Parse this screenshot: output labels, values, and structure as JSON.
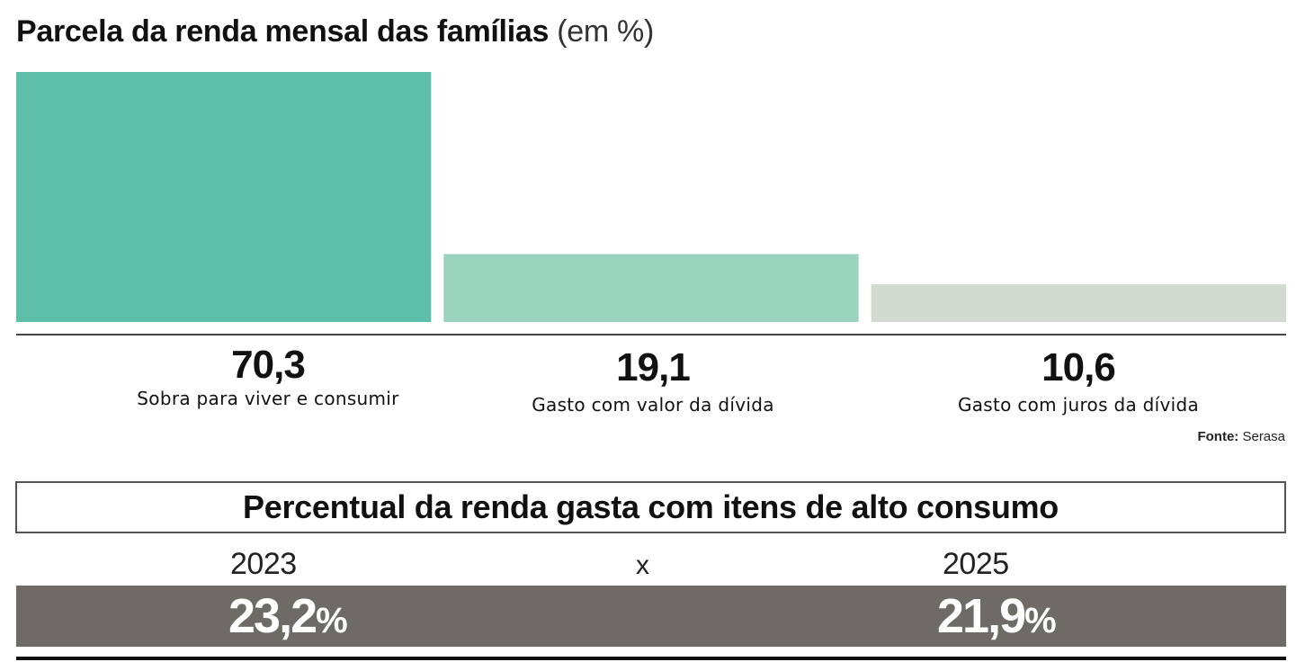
{
  "chart_data": {
    "type": "bar",
    "title": "Parcela da renda mensal das famílias",
    "unit": "(em %)",
    "categories": [
      "Sobra para viver e consumir",
      "Gasto com valor da dívida",
      "Gasto com juros da dívida"
    ],
    "values": [
      70.3,
      19.1,
      10.6
    ],
    "value_labels": [
      "70,3",
      "19,1",
      "10,6"
    ],
    "colors": [
      "#5bbfaa",
      "#9ad3bd",
      "#d2dbcf"
    ],
    "ylim": [
      0,
      70.3
    ],
    "grid": false,
    "legend": "none"
  },
  "source": {
    "label": "Fonte:",
    "name": "Serasa"
  },
  "comparison": {
    "title": "Percentual da renda gasta com itens de alto consumo",
    "separator": "x",
    "left": {
      "year": "2023",
      "value": "23,2",
      "unit": "%"
    },
    "right": {
      "year": "2025",
      "value": "21,9",
      "unit": "%"
    },
    "band_color": "#6e6a66"
  }
}
